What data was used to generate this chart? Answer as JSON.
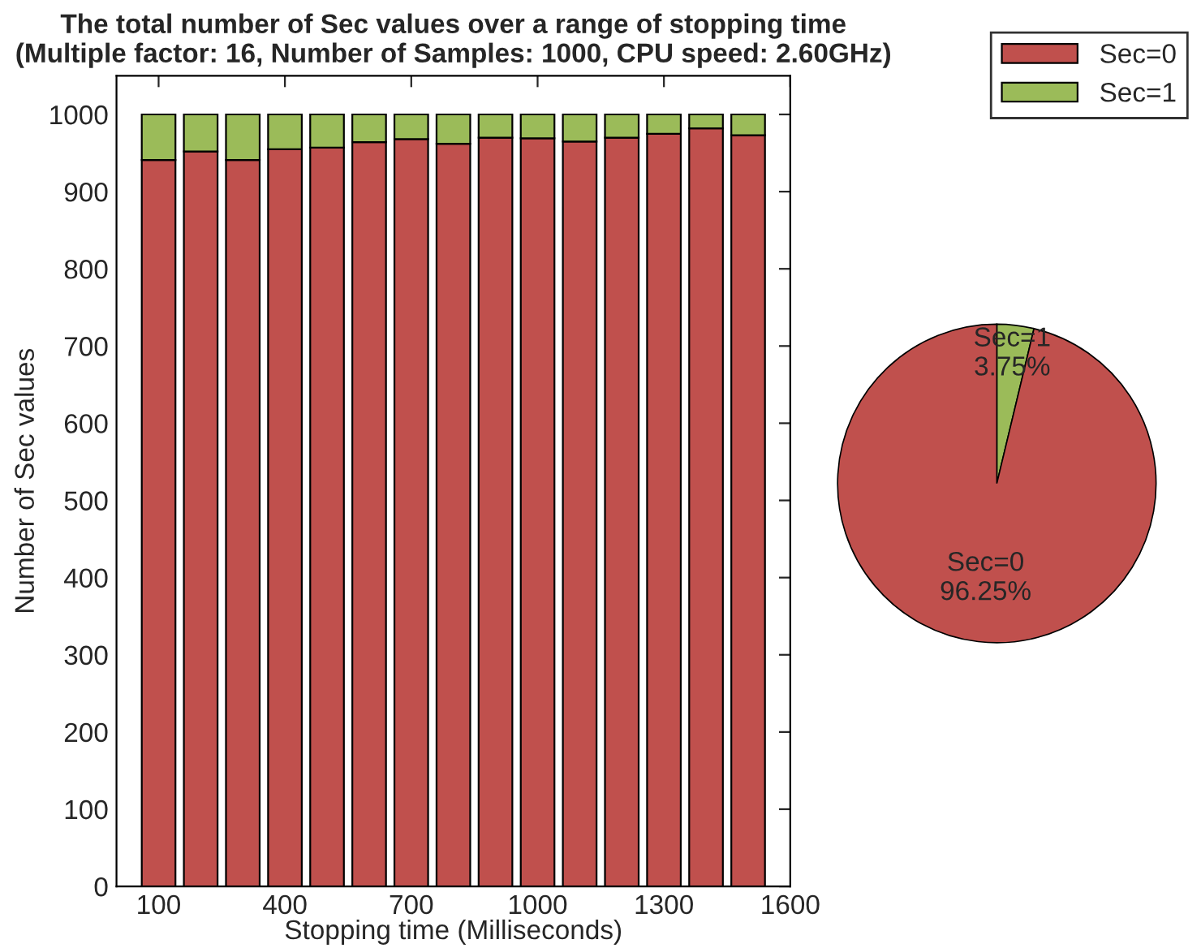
{
  "chart_data": [
    {
      "type": "bar",
      "title": "The total number of Sec values over a range of stopping time\n(Multiple factor: 16, Number of Samples: 1000, CPU speed: 2.60GHz)",
      "xlabel": "Stopping time (Milliseconds)",
      "ylabel": "Number of Sec values",
      "stacked": true,
      "x": [
        100,
        200,
        300,
        400,
        500,
        600,
        700,
        800,
        900,
        1000,
        1100,
        1200,
        1300,
        1400,
        1500
      ],
      "series": [
        {
          "name": "Sec=0",
          "color": "#c0504d",
          "values": [
            941,
            952,
            941,
            955,
            957,
            964,
            968,
            962,
            970,
            969,
            965,
            970,
            975,
            982,
            973
          ]
        },
        {
          "name": "Sec=1",
          "color": "#9bbb59",
          "values": [
            59,
            48,
            59,
            45,
            43,
            36,
            32,
            38,
            30,
            31,
            35,
            30,
            25,
            18,
            27
          ]
        }
      ],
      "xlim": [
        0,
        1600
      ],
      "xticks": [
        100,
        400,
        700,
        1000,
        1300,
        1600
      ],
      "ylim": [
        0,
        1050
      ],
      "yticks": [
        0,
        100,
        200,
        300,
        400,
        500,
        600,
        700,
        800,
        900,
        1000
      ],
      "grid": false,
      "legend": "right"
    },
    {
      "type": "pie",
      "categories": [
        "Sec=0",
        "Sec=1"
      ],
      "values": [
        96.25,
        3.75
      ],
      "value_labels": [
        "96.25%",
        "3.75%"
      ],
      "colors": [
        "#c0504d",
        "#9bbb59"
      ]
    }
  ]
}
